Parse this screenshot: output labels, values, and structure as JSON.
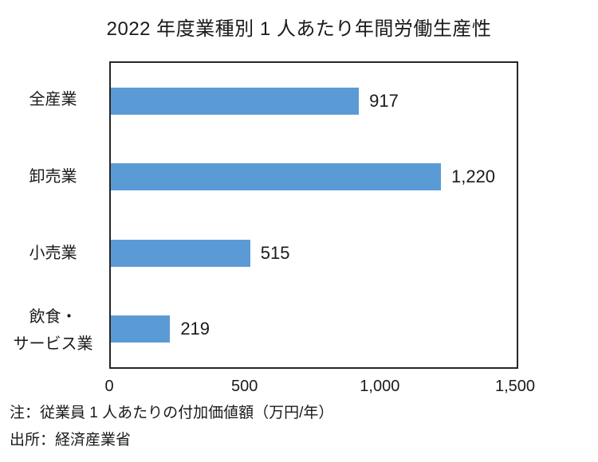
{
  "chart_data": {
    "type": "bar",
    "orientation": "horizontal",
    "title": "2022 年度業種別 1 人あたり年間労働生産性",
    "categories": [
      "全産業",
      "卸売業",
      "小売業",
      "飲食・\nサービス業"
    ],
    "values": [
      917,
      1220,
      515,
      219
    ],
    "value_labels": [
      "917",
      "1,220",
      "515",
      "219"
    ],
    "xlim": [
      0,
      1500
    ],
    "x_ticks": [
      "0",
      "500",
      "1,000",
      "1,500"
    ],
    "bar_color": "#5B9BD5",
    "grid": false,
    "legend": "none",
    "note": "注：従業員 1 人あたりの付加価値額（万円/年）",
    "source": "出所：経済産業省"
  }
}
